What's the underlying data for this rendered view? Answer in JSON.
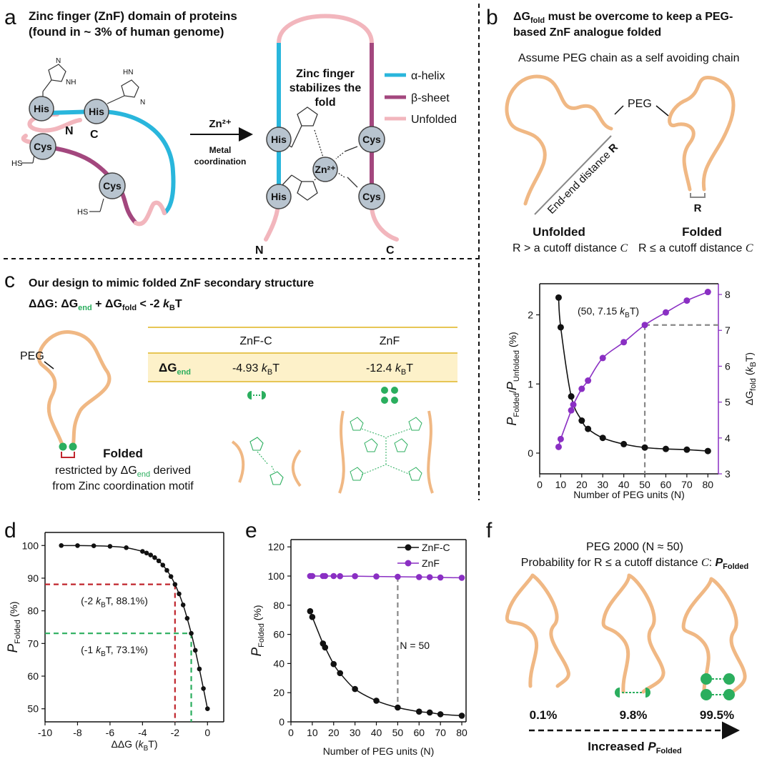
{
  "panels": {
    "a": {
      "letter": "a",
      "title_line1": "Zinc finger (ZnF) domain of proteins",
      "title_line2": "(found in ~ 3% of human genome)",
      "residue_his": "His",
      "residue_cys": "Cys",
      "n_term": "N",
      "c_term": "C",
      "hs_label": "HS",
      "zn_arrow_label": "Zn²⁺",
      "metal_line1": "Metal",
      "metal_line2": "coordination",
      "fold_line1": "Zinc finger",
      "fold_line2": "stabilizes the",
      "fold_line3": "fold",
      "zn_center": "Zn²⁺",
      "legend": [
        {
          "label": "α-helix",
          "color": "#29b6dc"
        },
        {
          "label": "β-sheet",
          "color": "#a3477e"
        },
        {
          "label": "Unfolded",
          "color": "#f2b6bd"
        }
      ]
    },
    "b": {
      "letter": "b",
      "title_line1_pre": "ΔG",
      "title_line1_sub": "fold",
      "title_line1_post": " must be overcome to keep a PEG-",
      "title_line2": "based ZnF analogue folded",
      "assume": "Assume PEG chain as a self avoiding chain",
      "peg": "PEG",
      "end_end": "End-end distance",
      "r_label": "R",
      "unfolded": "Unfolded",
      "folded": "Folded",
      "unfolded_cond": "R > a cutoff distance",
      "folded_cond": "R ≤ a cutoff distance",
      "cutoff_symbol": "C"
    },
    "c": {
      "letter": "c",
      "title": "Our design to mimic folded ZnF secondary structure",
      "eq_pre": "ΔΔG: ΔG",
      "eq_sub1": "end",
      "eq_mid": " + ΔG",
      "eq_sub2": "fold",
      "eq_post": " < -2 ",
      "kbt_k": "k",
      "kbt_b": "B",
      "kbt_t": "T",
      "peg": "PEG",
      "folded": "Folded",
      "restricted_pre": "restricted by ΔG",
      "restricted_sub": "end",
      "restricted_post": " derived",
      "from_zinc": "from Zinc coordination motif",
      "table": {
        "col1": "ZnF-C",
        "col2": "ZnF",
        "row_label": "ΔG",
        "row_sub": "end",
        "val1_num": "-4.93 ",
        "val2_num": "-12.4 "
      }
    },
    "d": {
      "letter": "d"
    },
    "e": {
      "letter": "e"
    },
    "f": {
      "letter": "f",
      "title1": "PEG 2000 (N ≈ 50)",
      "title2_pre": "Probability for R ≤ a cutoff distance ",
      "title2_c": "C",
      "title2_colon": ": ",
      "title2_p": "P",
      "title2_sub": "Folded",
      "pct": [
        "0.1%",
        "9.8%",
        "99.5%"
      ],
      "arrow_pre": "Increased ",
      "arrow_p": "P",
      "arrow_sub": "Folded"
    }
  },
  "chart_data": [
    {
      "id": "b-plot",
      "type": "line",
      "xlabel": "Number of PEG units (N)",
      "ylabel_left_p": "P",
      "ylabel_left_sub1": "Folded",
      "ylabel_left_slash": "/",
      "ylabel_left_sub2": "Unfolded",
      "ylabel_left_unit": " (%)",
      "ylabel_right_pre": "ΔG",
      "ylabel_right_sub": "fold",
      "ylabel_right_unit_k": "k",
      "ylabel_right_unit_b": "B",
      "ylabel_right_unit_t": "T",
      "xlim": [
        0,
        85
      ],
      "xticks": [
        0,
        10,
        20,
        30,
        40,
        50,
        60,
        70,
        80
      ],
      "ylim_left": [
        -0.3,
        2.45
      ],
      "yticks_left": [
        0,
        1,
        2
      ],
      "ylim_right": [
        3,
        8.3
      ],
      "yticks_right": [
        3,
        4,
        5,
        6,
        7,
        8
      ],
      "annotation": "(50, 7.15 kBT)",
      "annotation_pre": "(50, 7.15 ",
      "annotation_post": ")",
      "annotation_point": [
        50,
        7.15
      ],
      "series": [
        {
          "name": "",
          "axis": "left",
          "color": "#111111",
          "x": [
            9,
            10,
            15,
            20,
            23,
            30,
            40,
            50,
            60,
            70,
            80
          ],
          "y": [
            2.25,
            1.82,
            0.82,
            0.47,
            0.35,
            0.22,
            0.13,
            0.08,
            0.06,
            0.05,
            0.03
          ]
        },
        {
          "name": "",
          "axis": "right",
          "color": "#8a2fc3",
          "x": [
            9,
            10,
            15,
            16,
            20,
            23,
            30,
            40,
            50,
            60,
            70,
            80
          ],
          "y": [
            3.75,
            3.97,
            4.77,
            4.93,
            5.37,
            5.6,
            6.23,
            6.67,
            7.15,
            7.5,
            7.83,
            8.07
          ]
        }
      ]
    },
    {
      "id": "d-plot",
      "type": "line",
      "xlabel_pre": "ΔΔG (",
      "xlabel_post": ")",
      "ylabel_p": "P",
      "ylabel_sub": "Folded",
      "ylabel_unit": " (%)",
      "xlim": [
        -10,
        1
      ],
      "xticks": [
        -10,
        -8,
        -6,
        -4,
        -2,
        0
      ],
      "ylim": [
        46,
        104
      ],
      "yticks": [
        50,
        60,
        70,
        80,
        90,
        100
      ],
      "annotations": [
        {
          "pre": "(-2 ",
          "post": ", 88.1%)",
          "x": -2,
          "y": 88.1,
          "color": "#c0262d"
        },
        {
          "pre": "(-1 ",
          "post": ", 73.1%)",
          "x": -1,
          "y": 73.1,
          "color": "#2bae5e"
        }
      ],
      "series": [
        {
          "name": "",
          "x": [
            -9,
            -8,
            -7,
            -6,
            -5,
            -4,
            -3.75,
            -3.5,
            -3.25,
            -3,
            -2.75,
            -2.5,
            -2.25,
            -2,
            -1.75,
            -1.5,
            -1.25,
            -1,
            -0.75,
            -0.5,
            -0.25,
            0
          ],
          "y": [
            99.99,
            99.97,
            99.91,
            99.75,
            99.33,
            98.2,
            97.7,
            97.1,
            96.3,
            95.3,
            94.0,
            92.4,
            90.5,
            88.1,
            85.2,
            81.8,
            77.7,
            73.1,
            67.9,
            62.2,
            56.2,
            50.0
          ]
        }
      ]
    },
    {
      "id": "e-plot",
      "type": "line",
      "xlabel": "Number of PEG units (N)",
      "ylabel_p": "P",
      "ylabel_sub": "Folded",
      "ylabel_unit": " (%)",
      "xlim": [
        0,
        82
      ],
      "xticks": [
        0,
        10,
        20,
        30,
        40,
        50,
        60,
        70,
        80
      ],
      "ylim": [
        0,
        125
      ],
      "yticks": [
        0,
        20,
        40,
        60,
        80,
        100,
        120
      ],
      "annotation": "N = 50",
      "series": [
        {
          "name": "ZnF-C",
          "color": "#111111",
          "x": [
            9,
            10,
            15,
            16,
            20,
            23,
            30,
            40,
            50,
            60,
            65,
            70,
            80
          ],
          "y": [
            75.9,
            71.9,
            53.7,
            51.0,
            39.6,
            33.4,
            22.5,
            14.5,
            9.8,
            7.0,
            6.4,
            5.2,
            4.2
          ]
        },
        {
          "name": "ZnF",
          "color": "#8a2fc3",
          "x": [
            9,
            10,
            15,
            16,
            20,
            23,
            30,
            40,
            50,
            60,
            65,
            70,
            80
          ],
          "y": [
            100,
            100,
            100,
            100,
            100,
            99.9,
            99.9,
            99.7,
            99.5,
            99.3,
            99.2,
            99.0,
            98.8
          ]
        }
      ]
    }
  ]
}
